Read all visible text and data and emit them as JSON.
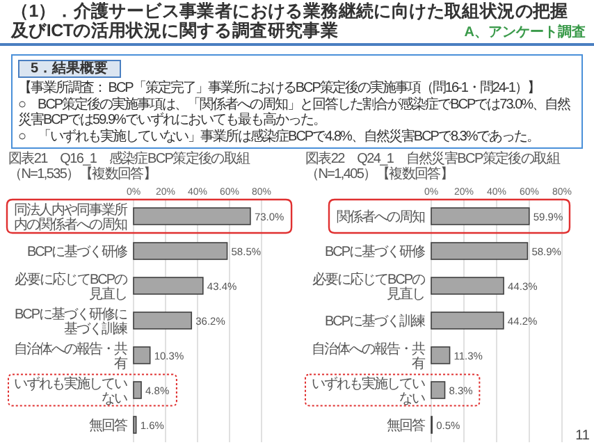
{
  "chart_data": [
    {
      "type": "other",
      "title": "（1）．介護サービス事業者における業務継続に向けた取組状況の把握及びICTの活用状況に関する調査研究事業",
      "subtitle": "A、アンケート調査",
      "annotations": [
        "5．結果概要",
        "【事業所調査： BCP「策定完了」事業所におけるBCP策定後の実施事項（問16-1・問24-1）】",
        "○　BCP策定後の実施事項は、「関係者への周知」と回答した割合が感染症でBCPでは73.0%、自然災害BCPでは59.9%でいずれにおいても最も高かった。",
        "○　「いずれも実施していない」事業所は感染症BCPで4.8%、自然災害BCPで8.3%であった。",
        "11"
      ]
    },
    {
      "type": "bar",
      "orientation": "horizontal",
      "title": "図表21　Q16_1　感染症BCP策定後の取組（N=1,535）【複数回答】",
      "categories": [
        "同法人内や同事業所内の関係者への周知",
        "BCPに基づく研修",
        "必要に応じてBCPの見直し",
        "BCPに基づく研修に基づく訓練",
        "自治体への報告・共有",
        "いずれも実施していない",
        "無回答"
      ],
      "values": [
        73.0,
        58.5,
        43.4,
        36.2,
        10.3,
        4.8,
        1.6
      ],
      "value_labels": [
        "73.0%",
        "58.5%",
        "43.4%",
        "36.2%",
        "10.3%",
        "4.8%",
        "1.6%"
      ],
      "color": "#a6a6a6",
      "xlim": [
        0,
        80
      ],
      "xticks": [
        {
          "value": 0,
          "label": "0%"
        },
        {
          "value": 20,
          "label": "20%"
        },
        {
          "value": 40,
          "label": "40%"
        },
        {
          "value": 60,
          "label": "60%"
        },
        {
          "value": 80,
          "label": "80%"
        }
      ],
      "grid": "x"
    },
    {
      "type": "bar",
      "orientation": "horizontal",
      "title": "図表22　Q24_1　自然災害BCP策定後の取組（N=1,405）【複数回答】",
      "categories": [
        "関係者への周知",
        "BCPに基づく研修",
        "必要に応じてBCPの見直し",
        "BCPに基づく訓練",
        "自治体への報告・共有",
        "いずれも実施していない",
        "無回答"
      ],
      "values": [
        59.9,
        58.9,
        44.3,
        44.2,
        11.3,
        8.3,
        0.5
      ],
      "value_labels": [
        "59.9%",
        "58.9%",
        "44.3%",
        "44.2%",
        "11.3%",
        "8.3%",
        "0.5%"
      ],
      "color": "#a6a6a6",
      "xlim": [
        0,
        80
      ],
      "xticks": [
        {
          "value": 0,
          "label": "0%"
        },
        {
          "value": 20,
          "label": "20%"
        },
        {
          "value": 40,
          "label": "40%"
        },
        {
          "value": 60,
          "label": "60%"
        },
        {
          "value": 80,
          "label": "80%"
        }
      ],
      "grid": "x"
    }
  ]
}
